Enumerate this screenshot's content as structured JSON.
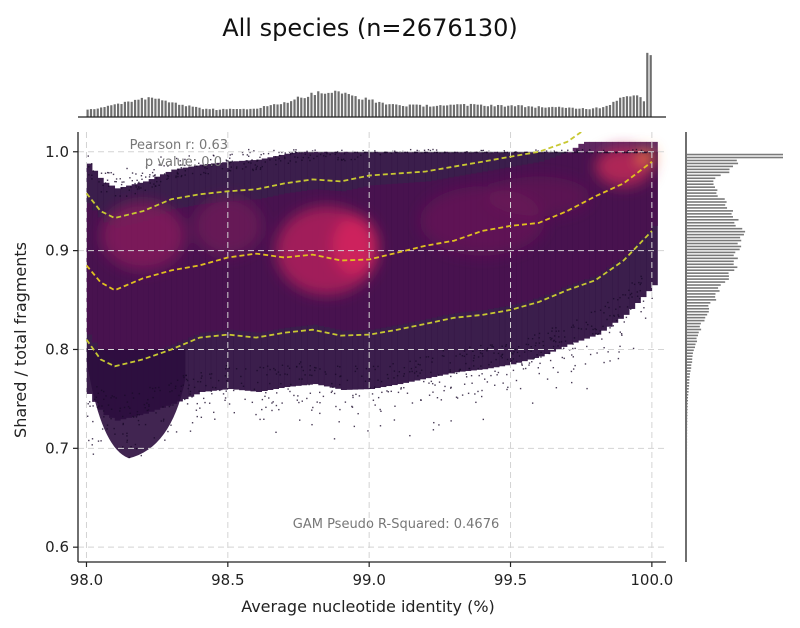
{
  "chart_data": {
    "type": "scatter",
    "subtype": "density-scatter-with-marginal-histograms",
    "title": "All species (n=2676130)",
    "xlabel": "Average nucleotide identity (%)",
    "ylabel": "Shared / total fragments",
    "xlim": [
      97.97,
      100.05
    ],
    "ylim": [
      0.585,
      1.02
    ],
    "x_ticks": [
      "98.0",
      "98.5",
      "99.0",
      "99.5",
      "100.0"
    ],
    "y_ticks": [
      "0.6",
      "0.7",
      "0.8",
      "0.9",
      "1.0"
    ],
    "grid": true,
    "colormap": "magma",
    "annotations": {
      "pearson": "Pearson r: 0.63",
      "pvalue": "p value: 0.0",
      "gam": "GAM Pseudo R-Squared: 0.4676"
    },
    "quantile_lines": [
      {
        "color": "#c8c832",
        "x": [
          98.0,
          98.05,
          98.1,
          98.2,
          98.3,
          98.4,
          98.5,
          98.6,
          98.7,
          98.8,
          98.9,
          99.0,
          99.1,
          99.2,
          99.3,
          99.4,
          99.5,
          99.6,
          99.7,
          99.75
        ],
        "y": [
          0.958,
          0.94,
          0.933,
          0.94,
          0.952,
          0.957,
          0.96,
          0.962,
          0.968,
          0.972,
          0.97,
          0.976,
          0.978,
          0.98,
          0.985,
          0.99,
          0.995,
          1.0,
          1.01,
          1.02
        ]
      },
      {
        "color": "#e0c020",
        "x": [
          98.0,
          98.05,
          98.1,
          98.2,
          98.3,
          98.4,
          98.5,
          98.6,
          98.7,
          98.8,
          98.9,
          99.0,
          99.1,
          99.2,
          99.3,
          99.4,
          99.5,
          99.6,
          99.7,
          99.8,
          99.9,
          100.0
        ],
        "y": [
          0.885,
          0.868,
          0.86,
          0.872,
          0.88,
          0.885,
          0.893,
          0.897,
          0.893,
          0.896,
          0.89,
          0.891,
          0.898,
          0.905,
          0.91,
          0.92,
          0.925,
          0.928,
          0.94,
          0.955,
          0.968,
          0.99
        ]
      },
      {
        "color": "#c8c832",
        "x": [
          98.0,
          98.05,
          98.1,
          98.2,
          98.3,
          98.4,
          98.5,
          98.6,
          98.7,
          98.8,
          98.9,
          99.0,
          99.1,
          99.2,
          99.3,
          99.4,
          99.5,
          99.6,
          99.7,
          99.8,
          99.9,
          100.0
        ],
        "y": [
          0.81,
          0.79,
          0.783,
          0.79,
          0.8,
          0.812,
          0.815,
          0.812,
          0.817,
          0.82,
          0.814,
          0.815,
          0.82,
          0.826,
          0.832,
          0.835,
          0.84,
          0.848,
          0.86,
          0.87,
          0.89,
          0.92
        ]
      }
    ]
  }
}
